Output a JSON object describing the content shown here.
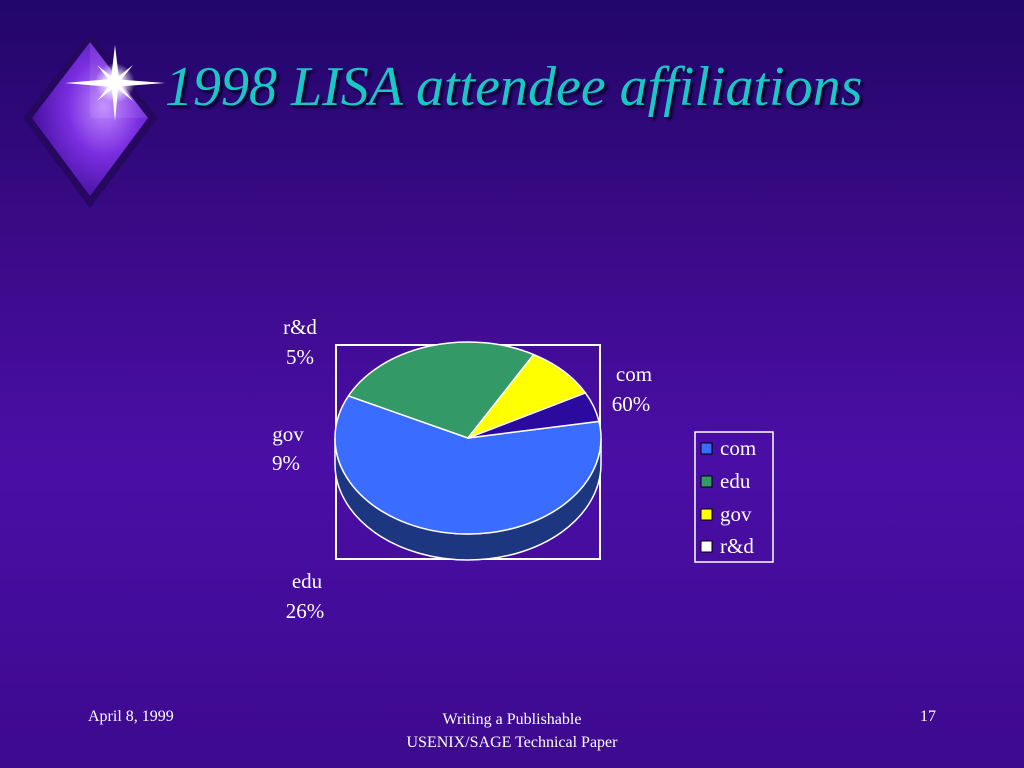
{
  "title": "1998 LISA attendee affiliations",
  "chart_data": {
    "type": "pie",
    "style": "3d",
    "slices": [
      {
        "label": "com",
        "value": 60,
        "value_label": "60%",
        "color": "#3a6cff"
      },
      {
        "label": "edu",
        "value": 26,
        "value_label": "26%",
        "color": "#339966"
      },
      {
        "label": "gov",
        "value": 9,
        "value_label": "9%",
        "color": "#ffff00"
      },
      {
        "label": "r&d",
        "value": 5,
        "value_label": "5%",
        "color": "#2b0aa0"
      }
    ],
    "legend": {
      "placement": "right",
      "entries": [
        {
          "label": "com",
          "color": "#3a6cff"
        },
        {
          "label": "edu",
          "color": "#339966"
        },
        {
          "label": "gov",
          "color": "#ffff00"
        },
        {
          "label": "r&d",
          "color": "#ffffff"
        }
      ]
    }
  },
  "footer": {
    "date": "April 8, 1999",
    "line1": "Writing a Publishable",
    "line2": "USENIX/SAGE Technical Paper",
    "page": "17"
  },
  "colors": {
    "title": "#1bc6c6",
    "background": "#3a0a86",
    "text": "#ffffff"
  },
  "icons": {
    "logo": "diamond-star-icon"
  }
}
